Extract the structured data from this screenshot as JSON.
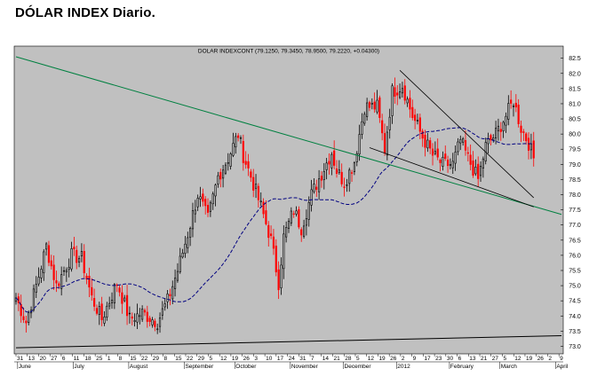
{
  "page": {
    "title": "DÓLAR INDEX Diario."
  },
  "colors": {
    "plot_bg": "#c0c0c0",
    "up": "#000000",
    "down": "#ff0000",
    "moving_average": "#000080",
    "trend_long": "#008040",
    "wedge": "#000000",
    "support": "#000000"
  },
  "chart_data": {
    "type": "candlestick",
    "title": "DOLAR INDEXCONT (79.1250, 79.3450, 78.9500, 79.2220, +0.04300)",
    "ylim": [
      72.75,
      82.9
    ],
    "yticks": [
      "73.0",
      "73.5",
      "74.0",
      "74.5",
      "75.0",
      "75.5",
      "76.0",
      "76.5",
      "77.0",
      "77.5",
      "78.0",
      "78.5",
      "79.0",
      "79.5",
      "80.0",
      "80.5",
      "81.0",
      "81.5",
      "82.0",
      "82.5"
    ],
    "day_labels": [
      "31",
      "13",
      "20",
      "27",
      "6",
      "11",
      "18",
      "25",
      "1",
      "8",
      "15",
      "22",
      "29",
      "8",
      "15",
      "22",
      "29",
      "5",
      "12",
      "19",
      "26",
      "3",
      "10",
      "17",
      "24",
      "31",
      "7",
      "14",
      "21",
      "28",
      "5",
      "12",
      "19",
      "26",
      "2",
      "9",
      "17",
      "23",
      "30",
      "6",
      "13",
      "21",
      "27",
      "5",
      "12",
      "19",
      "26",
      "2",
      "9"
    ],
    "month_labels": [
      "June",
      "July",
      "August",
      "September",
      "October",
      "November",
      "December",
      "2012",
      "February",
      "March",
      "April"
    ],
    "month_label_days": [
      1,
      23,
      45,
      67,
      87,
      109,
      130,
      151,
      172,
      192,
      214
    ],
    "days": 216,
    "price_anchors": [
      [
        0,
        74.6
      ],
      [
        4,
        73.8
      ],
      [
        8,
        75.0
      ],
      [
        12,
        76.3
      ],
      [
        16,
        75.0
      ],
      [
        22,
        76.0
      ],
      [
        26,
        75.9
      ],
      [
        30,
        74.6
      ],
      [
        34,
        73.9
      ],
      [
        40,
        75.1
      ],
      [
        45,
        73.9
      ],
      [
        50,
        74.1
      ],
      [
        56,
        73.8
      ],
      [
        60,
        74.5
      ],
      [
        64,
        75.5
      ],
      [
        68,
        76.7
      ],
      [
        72,
        78.0
      ],
      [
        76,
        77.2
      ],
      [
        80,
        78.6
      ],
      [
        84,
        79.2
      ],
      [
        88,
        80.0
      ],
      [
        90,
        79.3
      ],
      [
        93,
        78.6
      ],
      [
        97,
        77.6
      ],
      [
        101,
        76.5
      ],
      [
        104,
        75.1
      ],
      [
        106,
        76.6
      ],
      [
        110,
        77.5
      ],
      [
        113,
        76.9
      ],
      [
        117,
        78.0
      ],
      [
        121,
        78.7
      ],
      [
        125,
        79.4
      ],
      [
        127,
        78.8
      ],
      [
        130,
        78.4
      ],
      [
        134,
        79.1
      ],
      [
        138,
        80.9
      ],
      [
        143,
        80.9
      ],
      [
        146,
        79.5
      ],
      [
        149,
        81.4
      ],
      [
        153,
        81.6
      ],
      [
        157,
        80.6
      ],
      [
        161,
        79.9
      ],
      [
        165,
        79.3
      ],
      [
        169,
        79.0
      ],
      [
        173,
        79.0
      ],
      [
        176,
        79.8
      ],
      [
        179,
        79.2
      ],
      [
        183,
        78.5
      ],
      [
        186,
        79.6
      ],
      [
        190,
        80.0
      ],
      [
        194,
        80.6
      ],
      [
        197,
        81.1
      ],
      [
        200,
        80.2
      ],
      [
        203,
        79.7
      ],
      [
        205,
        79.2
      ]
    ],
    "overlays": {
      "long_trendline": {
        "from": [
          0,
          82.55
        ],
        "to": [
          216,
          77.35
        ]
      },
      "wedge_upper": {
        "from": [
          152,
          82.1
        ],
        "to": [
          205,
          77.9
        ]
      },
      "wedge_lower": {
        "from": [
          140,
          79.55
        ],
        "to": [
          205,
          77.6
        ]
      },
      "support_line": {
        "from": [
          0,
          72.95
        ],
        "to": [
          216,
          73.35
        ]
      }
    }
  }
}
